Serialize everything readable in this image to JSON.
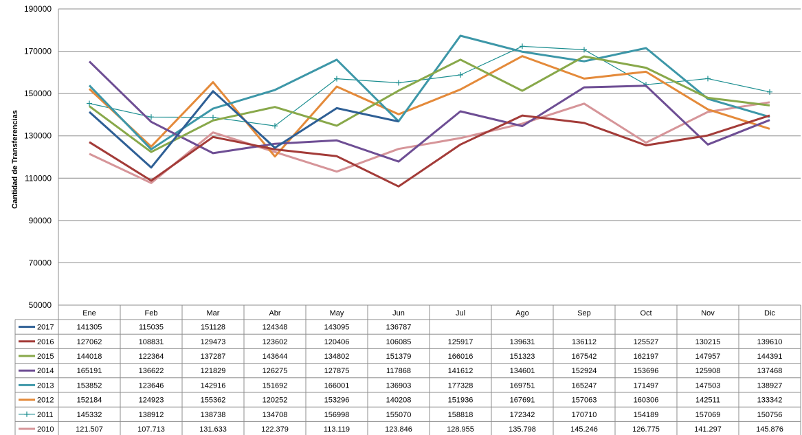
{
  "chart_data": {
    "type": "line",
    "ylabel": "Cantidad de Transferencias",
    "ylim": [
      50000,
      190000
    ],
    "yticks": [
      "50000",
      "70000",
      "90000",
      "110000",
      "130000",
      "150000",
      "170000",
      "190000"
    ],
    "grid": true,
    "legend": "data-table-below",
    "categories": [
      "Ene",
      "Feb",
      "Mar",
      "Abr",
      "May",
      "Jun",
      "Jul",
      "Ago",
      "Sep",
      "Oct",
      "Nov",
      "Dic"
    ],
    "series": [
      {
        "name": "2017",
        "color": "#2e5f95",
        "width": 3,
        "marker": "none",
        "values": [
          141305,
          115035,
          151128,
          124348,
          143095,
          136787,
          null,
          null,
          null,
          null,
          null,
          null
        ],
        "labels": [
          "141305",
          "115035",
          "151128",
          "124348",
          "143095",
          "136787",
          "",
          "",
          "",
          "",
          "",
          ""
        ]
      },
      {
        "name": "2016",
        "color": "#a33b38",
        "width": 3,
        "marker": "none",
        "values": [
          127062,
          108831,
          129473,
          123602,
          120406,
          106085,
          125917,
          139631,
          136112,
          125527,
          130215,
          139610
        ],
        "labels": [
          "127062",
          "108831",
          "129473",
          "123602",
          "120406",
          "106085",
          "125917",
          "139631",
          "136112",
          "125527",
          "130215",
          "139610"
        ]
      },
      {
        "name": "2015",
        "color": "#88a84a",
        "width": 3,
        "marker": "none",
        "values": [
          144018,
          122364,
          137287,
          143644,
          134802,
          151379,
          166016,
          151323,
          167542,
          162197,
          147957,
          144391
        ],
        "labels": [
          "144018",
          "122364",
          "137287",
          "143644",
          "134802",
          "151379",
          "166016",
          "151323",
          "167542",
          "162197",
          "147957",
          "144391"
        ]
      },
      {
        "name": "2014",
        "color": "#6e4e94",
        "width": 3,
        "marker": "none",
        "values": [
          165191,
          136622,
          121829,
          126275,
          127875,
          117868,
          141612,
          134601,
          152924,
          153696,
          125908,
          137468
        ],
        "labels": [
          "165191",
          "136622",
          "121829",
          "126275",
          "127875",
          "117868",
          "141612",
          "134601",
          "152924",
          "153696",
          "125908",
          "137468"
        ]
      },
      {
        "name": "2013",
        "color": "#3d97a8",
        "width": 3,
        "marker": "none",
        "values": [
          153852,
          123646,
          142916,
          151692,
          166001,
          136903,
          177328,
          169751,
          165247,
          171497,
          147503,
          138927
        ],
        "labels": [
          "153852",
          "123646",
          "142916",
          "151692",
          "166001",
          "136903",
          "177328",
          "169751",
          "165247",
          "171497",
          "147503",
          "138927"
        ]
      },
      {
        "name": "2012",
        "color": "#e48a3a",
        "width": 3,
        "marker": "none",
        "values": [
          152184,
          124923,
          155362,
          120252,
          153296,
          140208,
          151936,
          167691,
          157063,
          160306,
          142511,
          133342
        ],
        "labels": [
          "152184",
          "124923",
          "155362",
          "120252",
          "153296",
          "140208",
          "151936",
          "167691",
          "157063",
          "160306",
          "142511",
          "133342"
        ]
      },
      {
        "name": "2011",
        "color": "#1b8e90",
        "width": 1.2,
        "marker": "plus",
        "values": [
          145332,
          138912,
          138738,
          134708,
          156998,
          155070,
          158818,
          172342,
          170710,
          154189,
          157069,
          150756
        ],
        "labels": [
          "145332",
          "138912",
          "138738",
          "134708",
          "156998",
          "155070",
          "158818",
          "172342",
          "170710",
          "154189",
          "157069",
          "150756"
        ]
      },
      {
        "name": "2010",
        "color": "#d69599",
        "width": 3,
        "marker": "none",
        "values": [
          121507,
          107713,
          131633,
          122379,
          113119,
          123846,
          128955,
          135798,
          145246,
          126775,
          141297,
          145876
        ],
        "labels": [
          "121.507",
          "107.713",
          "131.633",
          "122.379",
          "113.119",
          "123.846",
          "128.955",
          "135.798",
          "145.246",
          "126.775",
          "141.297",
          "145.876"
        ]
      }
    ]
  }
}
